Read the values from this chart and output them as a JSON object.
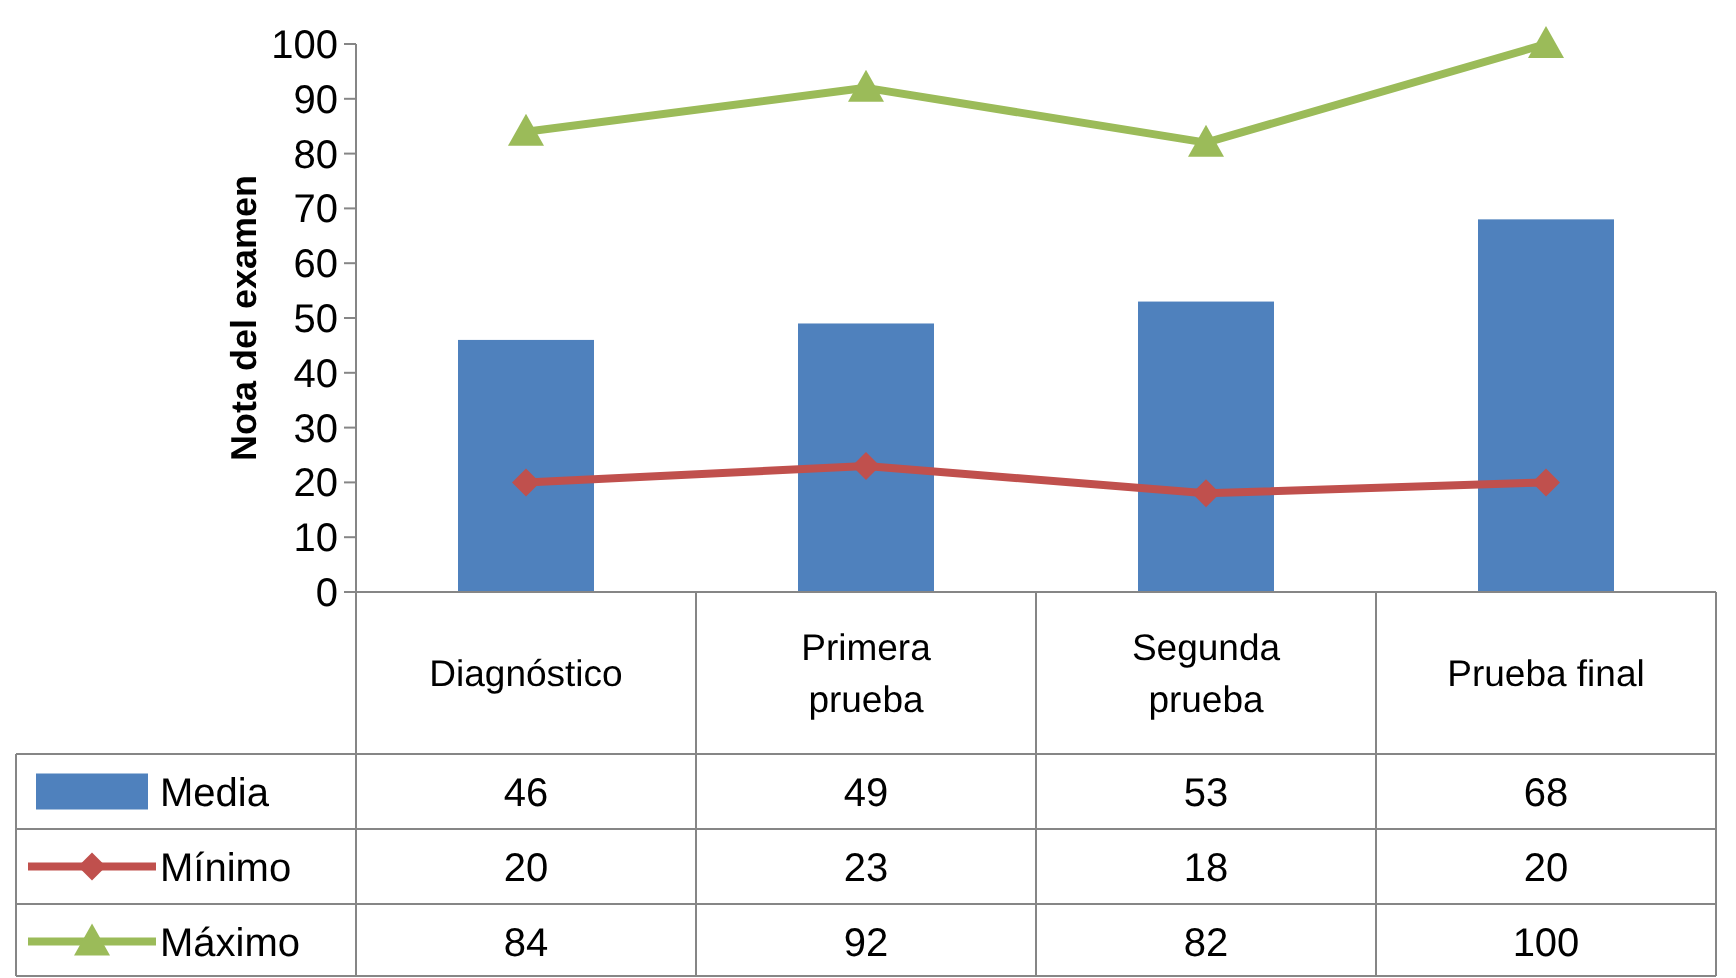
{
  "chart_data": {
    "type": "bar",
    "ylabel": "Nota del examen",
    "categories": [
      "Diagnóstico",
      "Primera prueba",
      "Segunda prueba",
      "Prueba final"
    ],
    "series": [
      {
        "name": "Media",
        "color": "#4f81bd",
        "values": [
          46,
          49,
          53,
          68
        ]
      },
      {
        "name": "Mínimo",
        "type": "line",
        "color": "#c0504d",
        "marker": "diamond",
        "values": [
          20,
          23,
          18,
          20
        ]
      },
      {
        "name": "Máximo",
        "type": "line",
        "color": "#9bbb59",
        "marker": "triangle",
        "values": [
          84,
          92,
          82,
          100
        ]
      }
    ],
    "ylim": [
      0,
      100
    ],
    "yticks": [
      0,
      10,
      20,
      30,
      40,
      50,
      60,
      70,
      80,
      90,
      100
    ],
    "data_labels": true,
    "legend": "bottom",
    "grid": false
  }
}
